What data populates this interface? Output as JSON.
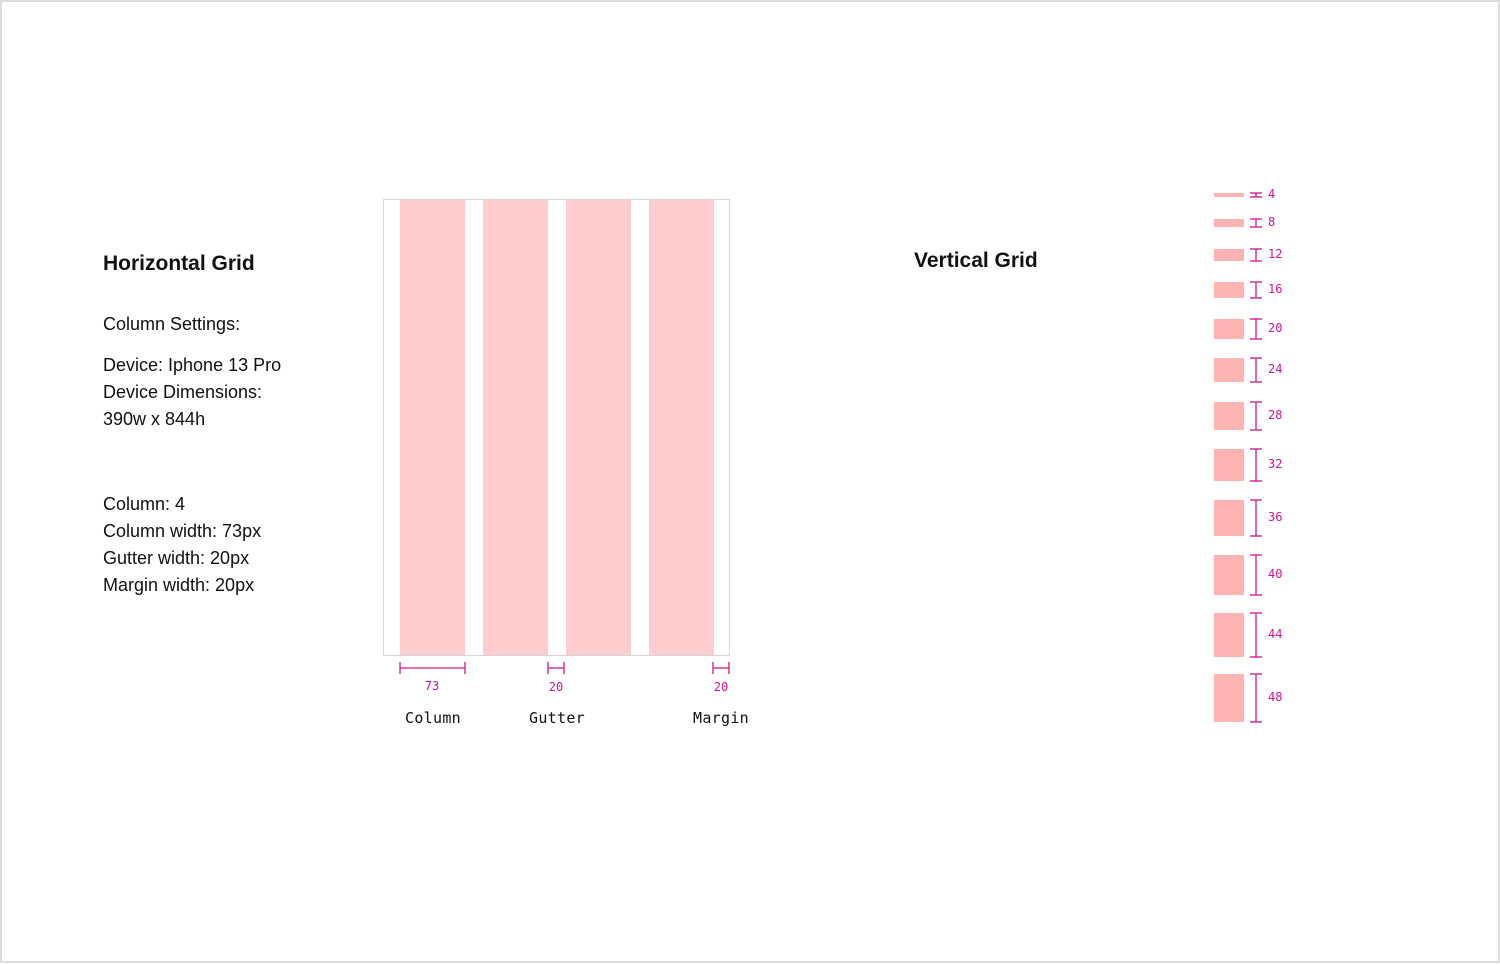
{
  "horizontal": {
    "title": "Horizontal Grid",
    "settings_title": "Column Settings:",
    "device_lines": [
      "Device: Iphone 13 Pro",
      "Device Dimensions:",
      "390w x 844h"
    ],
    "column_lines": [
      "Column: 4",
      "Column width: 73px",
      "Gutter width: 20px",
      "Margin width: 20px"
    ],
    "column_count": 4,
    "measures": [
      {
        "value": "73",
        "label": "Column"
      },
      {
        "value": "20",
        "label": "Gutter"
      },
      {
        "value": "20",
        "label": "Margin"
      }
    ]
  },
  "vertical": {
    "title": "Vertical Grid",
    "scale": [
      "4",
      "8",
      "12",
      "16",
      "20",
      "24",
      "28",
      "32",
      "36",
      "40",
      "44",
      "48"
    ]
  },
  "colors": {
    "column_fill": "#ffcdcd",
    "swatch_fill": "#ffb3b3",
    "measure_magenta": "#d0158f"
  }
}
